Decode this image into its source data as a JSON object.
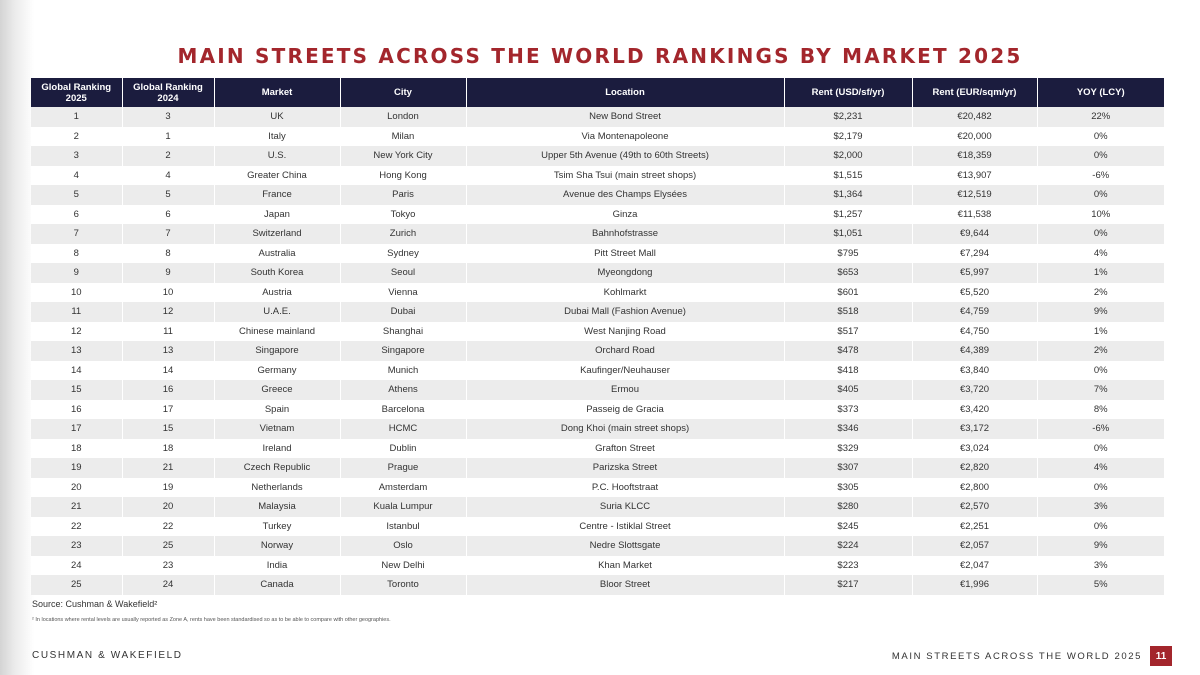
{
  "title": "MAIN STREETS ACROSS THE WORLD RANKINGS BY MARKET 2025",
  "table": {
    "headers": [
      "Global Ranking 2025",
      "Global Ranking 2024",
      "Market",
      "City",
      "Location",
      "Rent (USD/sf/yr)",
      "Rent (EUR/sqm/yr)",
      "YOY (LCY)"
    ],
    "rows": [
      [
        "1",
        "3",
        "UK",
        "London",
        "New Bond Street",
        "$2,231",
        "€20,482",
        "22%"
      ],
      [
        "2",
        "1",
        "Italy",
        "Milan",
        "Via Montenapoleone",
        "$2,179",
        "€20,000",
        "0%"
      ],
      [
        "3",
        "2",
        "U.S.",
        "New York City",
        "Upper 5th Avenue (49th to 60th Streets)",
        "$2,000",
        "€18,359",
        "0%"
      ],
      [
        "4",
        "4",
        "Greater China",
        "Hong Kong",
        "Tsim Sha Tsui (main street shops)",
        "$1,515",
        "€13,907",
        "-6%"
      ],
      [
        "5",
        "5",
        "France",
        "Paris",
        "Avenue des Champs Elysées",
        "$1,364",
        "€12,519",
        "0%"
      ],
      [
        "6",
        "6",
        "Japan",
        "Tokyo",
        "Ginza",
        "$1,257",
        "€11,538",
        "10%"
      ],
      [
        "7",
        "7",
        "Switzerland",
        "Zurich",
        "Bahnhofstrasse",
        "$1,051",
        "€9,644",
        "0%"
      ],
      [
        "8",
        "8",
        "Australia",
        "Sydney",
        "Pitt Street Mall",
        "$795",
        "€7,294",
        "4%"
      ],
      [
        "9",
        "9",
        "South Korea",
        "Seoul",
        "Myeongdong",
        "$653",
        "€5,997",
        "1%"
      ],
      [
        "10",
        "10",
        "Austria",
        "Vienna",
        "Kohlmarkt",
        "$601",
        "€5,520",
        "2%"
      ],
      [
        "11",
        "12",
        "U.A.E.",
        "Dubai",
        "Dubai Mall (Fashion Avenue)",
        "$518",
        "€4,759",
        "9%"
      ],
      [
        "12",
        "11",
        "Chinese mainland",
        "Shanghai",
        "West Nanjing Road",
        "$517",
        "€4,750",
        "1%"
      ],
      [
        "13",
        "13",
        "Singapore",
        "Singapore",
        "Orchard Road",
        "$478",
        "€4,389",
        "2%"
      ],
      [
        "14",
        "14",
        "Germany",
        "Munich",
        "Kaufinger/Neuhauser",
        "$418",
        "€3,840",
        "0%"
      ],
      [
        "15",
        "16",
        "Greece",
        "Athens",
        "Ermou",
        "$405",
        "€3,720",
        "7%"
      ],
      [
        "16",
        "17",
        "Spain",
        "Barcelona",
        "Passeig de Gracia",
        "$373",
        "€3,420",
        "8%"
      ],
      [
        "17",
        "15",
        "Vietnam",
        "HCMC",
        "Dong Khoi (main street shops)",
        "$346",
        "€3,172",
        "-6%"
      ],
      [
        "18",
        "18",
        "Ireland",
        "Dublin",
        "Grafton Street",
        "$329",
        "€3,024",
        "0%"
      ],
      [
        "19",
        "21",
        "Czech Republic",
        "Prague",
        "Parizska Street",
        "$307",
        "€2,820",
        "4%"
      ],
      [
        "20",
        "19",
        "Netherlands",
        "Amsterdam",
        "P.C. Hooftstraat",
        "$305",
        "€2,800",
        "0%"
      ],
      [
        "21",
        "20",
        "Malaysia",
        "Kuala Lumpur",
        "Suria KLCC",
        "$280",
        "€2,570",
        "3%"
      ],
      [
        "22",
        "22",
        "Turkey",
        "Istanbul",
        "Centre - Istiklal Street",
        "$245",
        "€2,251",
        "0%"
      ],
      [
        "23",
        "25",
        "Norway",
        "Oslo",
        "Nedre Slottsgate",
        "$224",
        "€2,057",
        "9%"
      ],
      [
        "24",
        "23",
        "India",
        "New Delhi",
        "Khan Market",
        "$223",
        "€2,047",
        "3%"
      ],
      [
        "25",
        "24",
        "Canada",
        "Toronto",
        "Bloor Street",
        "$217",
        "€1,996",
        "5%"
      ]
    ]
  },
  "source": "Source: Cushman & Wakefield²",
  "footnote": "² In locations where rental levels are usually reported as Zone A, rents have been standardised so as to be able to compare with other geographies.",
  "footer": {
    "brand": "CUSHMAN & WAKEFIELD",
    "report_title": "MAIN STREETS ACROSS THE WORLD 2025",
    "page_number": "11"
  },
  "colors": {
    "title_red": "#a3262c",
    "header_navy": "#1b1c3e",
    "row_stripe": "#ececec"
  }
}
